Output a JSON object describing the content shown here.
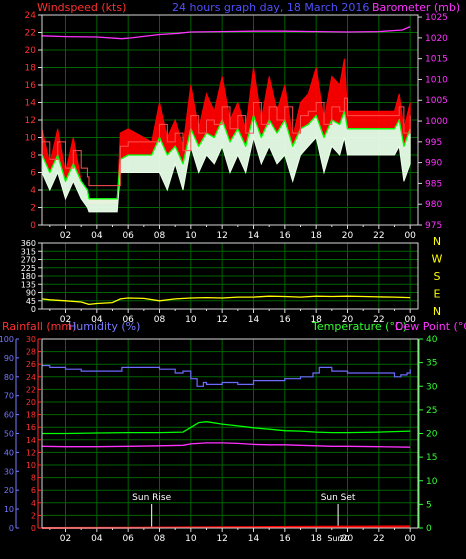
{
  "title": "24 hours graph day, 18 March 2016",
  "colors": {
    "background": "#000000",
    "grid": "#006400",
    "axis_frame": "#d9d9d9",
    "tick_text": "#ffffff",
    "wind_gust": "#ff0000",
    "wind_avg": "#e8ffe8",
    "wind_line": "#00ff00",
    "wind_direction": "#ffff00",
    "barometer": "#ff33ff",
    "humidity": "#6b6bff",
    "temperature": "#00ff00",
    "dewpoint": "#ff33ff",
    "rainfall": "#ff0000",
    "rain_axis": "#ff3030",
    "humidity_axis": "#7878ff",
    "temp_axis": "#33ff33",
    "dir_letters": "#ffff00",
    "sun_label": "#ffffff"
  },
  "chart_data": [
    {
      "type": "line",
      "id": "wind_baro",
      "title": "24 hours graph day, 18 March 2016",
      "left_axis_label": "Windspeed (kts)",
      "right_axis_label": "Barometer (mb)",
      "x_tick_labels": [
        "02",
        "04",
        "06",
        "08",
        "10",
        "12",
        "14",
        "16",
        "18",
        "20",
        "22",
        "00"
      ],
      "x_range_hours": [
        0.5,
        24.5
      ],
      "y_left_ticks": [
        "0",
        "2",
        "4",
        "6",
        "8",
        "10",
        "12",
        "14",
        "16",
        "18",
        "20",
        "22",
        "24"
      ],
      "ylim_left": [
        0,
        24
      ],
      "y_right_ticks": [
        "975",
        "980",
        "985",
        "990",
        "995",
        "1000",
        "1005",
        "1010",
        "1015",
        "1020",
        "1025"
      ],
      "ylim_right": [
        975,
        1025.5
      ],
      "grid": true,
      "series": [
        {
          "name": "Barometer",
          "axis": "right",
          "x": [
            0.5,
            2,
            4,
            5.6,
            6.2,
            8,
            9.2,
            10,
            12,
            14,
            16,
            18,
            20,
            22,
            23.5,
            24
          ],
          "y": [
            1020.5,
            1020.3,
            1020.2,
            1019.8,
            1020.0,
            1020.8,
            1021.1,
            1021.4,
            1021.5,
            1021.6,
            1021.6,
            1021.5,
            1021.4,
            1021.5,
            1021.9,
            1022.7
          ]
        },
        {
          "name": "Gust",
          "axis": "left",
          "x": [
            0.5,
            1,
            1.5,
            2,
            2.5,
            3,
            3.4,
            3.5,
            5.3,
            5.5,
            6,
            7.5,
            8,
            8.5,
            9,
            9.5,
            10,
            10.5,
            11,
            11.5,
            12,
            12.5,
            13,
            13.5,
            14,
            14.5,
            15,
            15.5,
            16,
            16.5,
            17,
            17.5,
            18,
            18.5,
            19,
            19.5,
            19.8,
            20,
            22,
            23,
            23.3,
            23.6,
            24
          ],
          "y": [
            11,
            7,
            11,
            6,
            10,
            5,
            4,
            2.5,
            2.5,
            10.5,
            11,
            9.5,
            14,
            10,
            12,
            9,
            16,
            11,
            15,
            13,
            17,
            12,
            14,
            11,
            18,
            12,
            17,
            13,
            16,
            10,
            14,
            15,
            18,
            12,
            17,
            16,
            19,
            13,
            13,
            13,
            15,
            11,
            14
          ]
        },
        {
          "name": "Average",
          "axis": "left",
          "x": [
            0.5,
            1,
            1.5,
            2,
            2.5,
            3,
            3.4,
            3.5,
            5.3,
            5.5,
            6,
            7.5,
            8,
            8.5,
            9,
            9.5,
            10,
            10.5,
            11,
            11.5,
            12,
            12.5,
            13,
            13.5,
            14,
            14.5,
            15,
            15.5,
            16,
            16.5,
            17,
            17.5,
            18,
            18.5,
            19,
            19.5,
            19.8,
            20,
            22,
            23,
            23.3,
            23.6,
            24
          ],
          "y": [
            6,
            4,
            6,
            3,
            5,
            3,
            2,
            1.5,
            1.5,
            6,
            6,
            6,
            6,
            4,
            7,
            4,
            9,
            6,
            8,
            7,
            9,
            6,
            8,
            6,
            10,
            7,
            9,
            7,
            8,
            5,
            8,
            9,
            10,
            6,
            9,
            8,
            10,
            8,
            8,
            8,
            9,
            5,
            7
          ]
        },
        {
          "name": "Average (line)",
          "axis": "left",
          "x": [
            0.5,
            1,
            1.5,
            2,
            2.5,
            3,
            3.4,
            3.5,
            5.3,
            5.5,
            6,
            7.5,
            8,
            8.5,
            9,
            9.5,
            10,
            10.5,
            11,
            11.5,
            12,
            12.5,
            13,
            13.5,
            14,
            14.5,
            15,
            15.5,
            16,
            16.5,
            17,
            17.5,
            18,
            18.5,
            19,
            19.5,
            19.8,
            20,
            22,
            23,
            23.3,
            23.6,
            24
          ],
          "y": [
            8,
            6,
            8,
            5,
            7,
            5,
            4,
            3,
            3,
            7.5,
            8,
            8,
            10,
            8,
            9,
            7,
            11,
            9,
            10.5,
            10,
            12,
            9.5,
            11,
            9,
            12.5,
            10,
            12,
            10.5,
            12,
            9,
            11,
            11.5,
            12.5,
            10,
            12,
            11.5,
            13,
            11,
            11,
            11,
            12,
            9,
            11
          ]
        }
      ]
    },
    {
      "type": "line",
      "id": "wind_direction",
      "x_tick_labels": [
        "02",
        "04",
        "06",
        "08",
        "10",
        "12",
        "14",
        "16",
        "18",
        "20",
        "22",
        "00"
      ],
      "x_range_hours": [
        0.5,
        24.5
      ],
      "y_ticks": [
        "0",
        "45",
        "90",
        "135",
        "180",
        "225",
        "270",
        "315",
        "360"
      ],
      "ylim": [
        0,
        360
      ],
      "right_axis_letters": [
        "N",
        "W",
        "S",
        "E",
        "N"
      ],
      "grid": true,
      "series": [
        {
          "name": "Wind direction",
          "x": [
            0.5,
            1,
            2,
            3,
            3.5,
            4,
            5,
            5.5,
            6,
            7,
            8,
            9,
            10,
            11,
            12,
            13,
            14,
            15,
            16,
            17,
            18,
            19,
            20,
            21,
            22,
            23,
            24
          ],
          "y": [
            55,
            50,
            45,
            38,
            25,
            30,
            35,
            55,
            60,
            58,
            45,
            55,
            60,
            62,
            60,
            65,
            65,
            70,
            68,
            65,
            70,
            68,
            70,
            68,
            66,
            65,
            62
          ]
        }
      ]
    },
    {
      "type": "line",
      "id": "temp_hum_rain",
      "left_axis_label_rain": "Rainfall (mm)",
      "left_axis_label_hum": "Humidity (%)",
      "right_axis_label_temp": "Temperature (°C)",
      "right_axis_label_dew": "Dew Point (°C)",
      "x_tick_labels": [
        "02",
        "04",
        "06",
        "08",
        "10",
        "12",
        "14",
        "16",
        "18",
        "20",
        "22",
        "00"
      ],
      "extra_x_tick_labels": [
        "Sun",
        "20"
      ],
      "x_range_hours": [
        0.5,
        24.5
      ],
      "humidity_ticks": [
        "0",
        "10",
        "20",
        "30",
        "40",
        "50",
        "60",
        "70",
        "80",
        "90",
        "100"
      ],
      "humidity_range": [
        0,
        100
      ],
      "rain_ticks": [
        "0",
        "2",
        "4",
        "6",
        "8",
        "10",
        "12",
        "14",
        "16",
        "18",
        "20",
        "22",
        "24",
        "26",
        "28",
        "30"
      ],
      "rain_range": [
        0,
        30
      ],
      "temp_ticks": [
        "0",
        "5",
        "10",
        "15",
        "20",
        "25",
        "30",
        "35",
        "40"
      ],
      "temp_range": [
        0,
        40
      ],
      "sun_rise_label": "Sun Rise",
      "sun_rise_hour": 7.5,
      "sun_set_label": "Sun Set",
      "sun_set_hour": 19.4,
      "grid": true,
      "series": [
        {
          "name": "Humidity",
          "axis": "humidity",
          "x": [
            0.5,
            1,
            2,
            3,
            4,
            5,
            5.6,
            6,
            7,
            8,
            9,
            9.5,
            10,
            10.4,
            10.8,
            11,
            12,
            13,
            14,
            15,
            16,
            17,
            17.8,
            18.2,
            19,
            20,
            21,
            22,
            23,
            23.4,
            23.8,
            24
          ],
          "y": [
            86,
            85,
            84,
            83,
            83,
            83,
            85,
            85,
            85,
            84,
            82,
            83,
            79,
            75,
            77,
            76,
            77,
            76,
            78,
            78,
            79,
            80,
            82,
            85,
            83,
            82,
            82,
            82,
            80,
            81,
            82,
            84
          ]
        },
        {
          "name": "Temperature",
          "axis": "temp",
          "x": [
            0.5,
            2,
            4,
            6,
            8,
            9.5,
            10,
            10.5,
            11,
            12,
            13,
            14,
            15,
            16,
            17,
            18,
            19,
            20,
            22,
            24
          ],
          "y": [
            20.0,
            20.0,
            20.1,
            20.2,
            20.2,
            20.3,
            21.3,
            22.3,
            22.5,
            22.0,
            21.6,
            21.2,
            20.9,
            20.6,
            20.5,
            20.3,
            20.2,
            20.2,
            20.3,
            20.5
          ]
        },
        {
          "name": "Dew Point",
          "axis": "temp",
          "x": [
            0.5,
            2,
            4,
            6,
            8,
            9.5,
            10,
            10.5,
            11,
            12,
            13,
            14,
            15,
            16,
            17,
            18,
            19,
            20,
            22,
            24
          ],
          "y": [
            17.3,
            17.2,
            17.2,
            17.3,
            17.4,
            17.5,
            17.8,
            17.9,
            18.0,
            18.0,
            17.9,
            17.7,
            17.6,
            17.6,
            17.5,
            17.4,
            17.3,
            17.3,
            17.2,
            17.1
          ]
        },
        {
          "name": "Rainfall",
          "axis": "rain",
          "x": [
            0.5,
            6,
            10,
            14,
            18,
            24
          ],
          "y": [
            0,
            0.05,
            0.1,
            0.15,
            0.2,
            0.25
          ]
        }
      ]
    }
  ]
}
